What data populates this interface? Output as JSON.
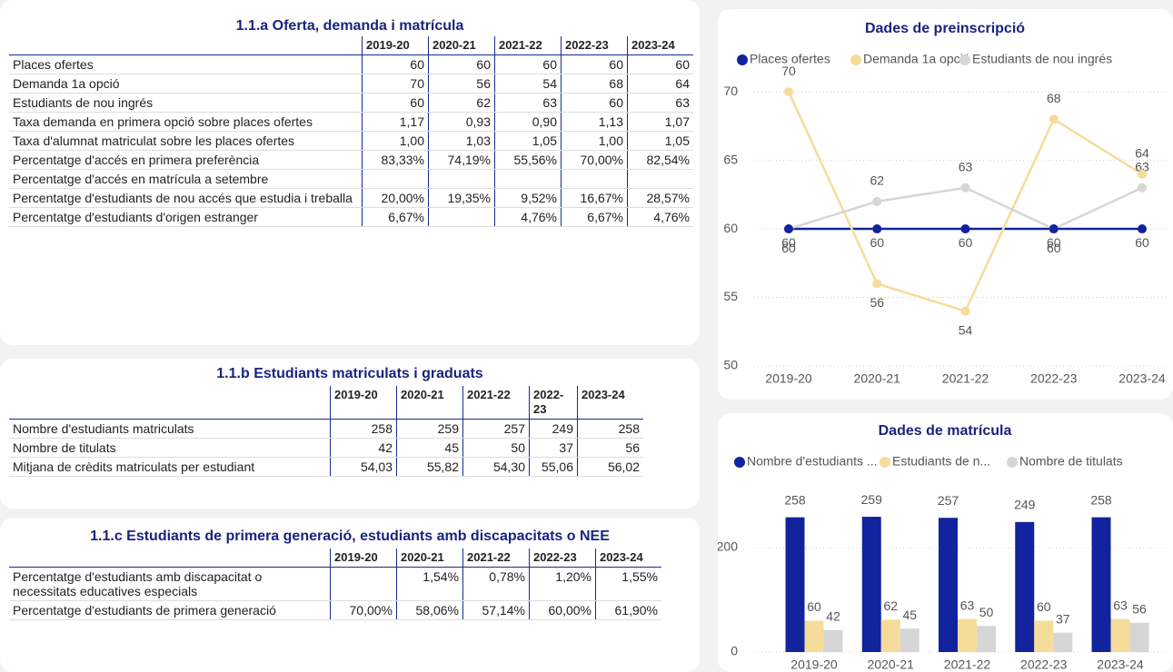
{
  "tables": [
    {
      "title": "1.1.a Oferta, demanda i matrícula",
      "columns": [
        "2019-20",
        "2020-21",
        "2021-22",
        "2022-23",
        "2023-24"
      ],
      "rows": [
        [
          "Places ofertes",
          "60",
          "60",
          "60",
          "60",
          "60"
        ],
        [
          "Demanda 1a opció",
          "70",
          "56",
          "54",
          "68",
          "64"
        ],
        [
          "Estudiants de nou ingrés",
          "60",
          "62",
          "63",
          "60",
          "63"
        ],
        [
          "Taxa demanda en primera opció sobre places ofertes",
          "1,17",
          "0,93",
          "0,90",
          "1,13",
          "1,07"
        ],
        [
          "Taxa d'alumnat matriculat sobre les places ofertes",
          "1,00",
          "1,03",
          "1,05",
          "1,00",
          "1,05"
        ],
        [
          "Percentatge d'accés en primera preferència",
          "83,33%",
          "74,19%",
          "55,56%",
          "70,00%",
          "82,54%"
        ],
        [
          "Percentatge d'accés en matrícula a setembre",
          null,
          null,
          null,
          null,
          null
        ],
        [
          "Percentatge d'estudiants de nou accés que estudia i treballa",
          "20,00%",
          "19,35%",
          "9,52%",
          "16,67%",
          "28,57%"
        ],
        [
          "Percentatge d'estudiants d'origen estranger",
          "6,67%",
          null,
          "4,76%",
          "6,67%",
          "4,76%"
        ]
      ]
    },
    {
      "title": "1.1.b Estudiants matriculats i graduats",
      "columns": [
        "2019-20",
        "2020-21",
        "2021-22",
        "2022-23",
        "2023-24"
      ],
      "rows": [
        [
          "Nombre d'estudiants matriculats",
          "258",
          "259",
          "257",
          "249",
          "258"
        ],
        [
          "Nombre de titulats",
          "42",
          "45",
          "50",
          "37",
          "56"
        ],
        [
          "Mitjana de crèdits matriculats per estudiant",
          "54,03",
          "55,82",
          "54,30",
          "55,06",
          "56,02"
        ]
      ]
    },
    {
      "title": "1.1.c Estudiants de primera generació, estudiants amb discapacitats o NEE",
      "columns": [
        "2019-20",
        "2020-21",
        "2021-22",
        "2022-23",
        "2023-24"
      ],
      "rows": [
        [
          "Percentatge d'estudiants amb discapacitat o necessitats educatives especials",
          null,
          "1,54%",
          "0,78%",
          "1,20%",
          "1,55%"
        ],
        [
          "Percentatge d'estudiants de primera generació",
          "70,00%",
          "58,06%",
          "57,14%",
          "60,00%",
          "61,90%"
        ]
      ]
    }
  ],
  "chart_data": [
    {
      "type": "line",
      "title": "Dades de preinscripció",
      "categories": [
        "2019-20",
        "2020-21",
        "2021-22",
        "2022-23",
        "2023-24"
      ],
      "series": [
        {
          "name": "Places ofertes",
          "color": "#12239e",
          "values": [
            60,
            60,
            60,
            60,
            60
          ]
        },
        {
          "name": "Demanda 1a opció",
          "color": "#f5dc9a",
          "values": [
            70,
            56,
            54,
            68,
            64
          ]
        },
        {
          "name": "Estudiants de nou ingrés",
          "color": "#d6d6d6",
          "values": [
            60,
            62,
            63,
            60,
            63
          ]
        }
      ],
      "ylim": [
        50,
        71
      ],
      "yticks": [
        50,
        55,
        60,
        65,
        70
      ],
      "grid": true
    },
    {
      "type": "bar",
      "title": "Dades de matrícula",
      "categories": [
        "2019-20",
        "2020-21",
        "2021-22",
        "2022-23",
        "2023-24"
      ],
      "series": [
        {
          "name": "Nombre d'estudiants ...",
          "color": "#12239e",
          "values": [
            258,
            259,
            257,
            249,
            258
          ]
        },
        {
          "name": "Estudiants de n...",
          "color": "#f5dc9a",
          "values": [
            60,
            62,
            63,
            60,
            63
          ]
        },
        {
          "name": "Nombre de titulats",
          "color": "#d6d6d6",
          "values": [
            42,
            45,
            50,
            37,
            56
          ]
        }
      ],
      "ylim": [
        0,
        300
      ],
      "yticks": [
        0,
        200
      ],
      "grid": true
    }
  ]
}
